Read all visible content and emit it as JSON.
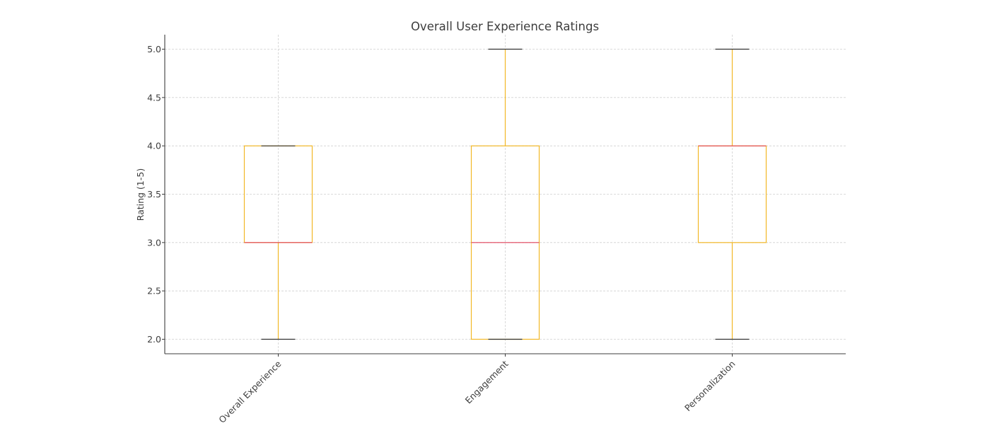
{
  "chart_data": {
    "type": "box",
    "title": "Overall User Experience Ratings",
    "xlabel": "",
    "ylabel": "Rating (1-5)",
    "ylim": [
      1.85,
      5.15
    ],
    "yticks": [
      "2.0",
      "2.5",
      "3.0",
      "3.5",
      "4.0",
      "4.5",
      "5.0"
    ],
    "grid": true,
    "colors": {
      "box": "#f2b827",
      "median": "#e0425a",
      "cap": "#333333",
      "grid": "#d0d0d0",
      "axis": "#3d3d3d"
    },
    "categories": [
      "Overall Experience",
      "Engagement",
      "Personalization"
    ],
    "boxes": [
      {
        "label": "Overall Experience",
        "whisker_low": 2.0,
        "q1": 3.0,
        "median": 3.0,
        "q3": 4.0,
        "whisker_high": 4.0
      },
      {
        "label": "Engagement",
        "whisker_low": 2.0,
        "q1": 2.0,
        "median": 3.0,
        "q3": 4.0,
        "whisker_high": 5.0
      },
      {
        "label": "Personalization",
        "whisker_low": 2.0,
        "q1": 3.0,
        "median": 4.0,
        "q3": 4.0,
        "whisker_high": 5.0
      }
    ]
  }
}
